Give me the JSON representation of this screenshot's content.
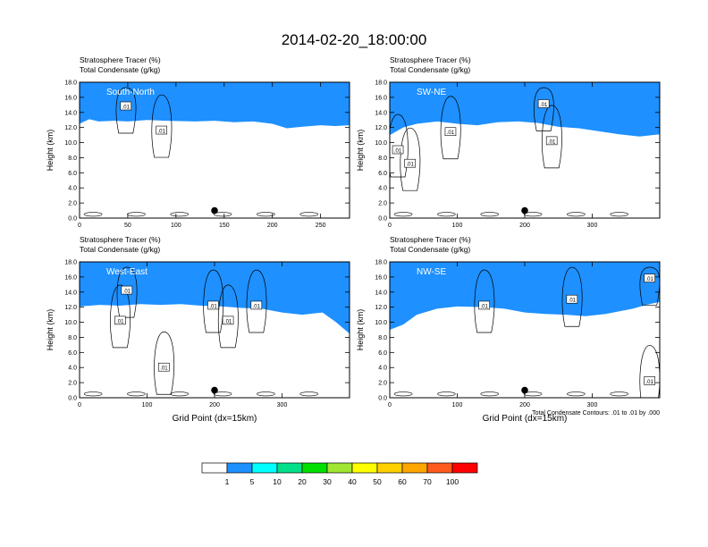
{
  "figure": {
    "title": "2014-02-20_18:00:00",
    "footnote": "Total Condensate Contours: .01 to .01 by .000"
  },
  "colorbar": {
    "levels": [
      "1",
      "5",
      "10",
      "20",
      "30",
      "40",
      "50",
      "60",
      "70",
      "100"
    ],
    "colors": [
      "#ffffff",
      "#1e90ff",
      "#00ffff",
      "#00e08a",
      "#00e000",
      "#a0e632",
      "#ffff00",
      "#ffd000",
      "#ffa500",
      "#ff5a1e",
      "#ff0000"
    ]
  },
  "chart_data": [
    {
      "type": "heatmap",
      "panel": "South-North",
      "title_lines": [
        "Stratosphere Tracer   (%)",
        "Total Condensate   (g/kg)"
      ],
      "ylabel": "Height (km)",
      "xlabel": "",
      "xlim": [
        0,
        280
      ],
      "ylim": [
        0,
        18
      ],
      "xticks": [
        "0",
        "50",
        "100",
        "150",
        "200",
        "250"
      ],
      "yticks": [
        "0.0",
        "2.0",
        "4.0",
        "6.0",
        "8.0",
        "10.0",
        "12.0",
        "14.0",
        "16.0",
        "18.0"
      ],
      "tracer_boundary": [
        {
          "x": 0,
          "h": 16.0
        },
        {
          "x": 10,
          "h": 16.6
        },
        {
          "x": 20,
          "h": 16.3
        },
        {
          "x": 35,
          "h": 16.4
        },
        {
          "x": 50,
          "h": 16.3
        },
        {
          "x": 70,
          "h": 16.5
        },
        {
          "x": 90,
          "h": 16.4
        },
        {
          "x": 120,
          "h": 16.3
        },
        {
          "x": 140,
          "h": 16.4
        },
        {
          "x": 160,
          "h": 16.2
        },
        {
          "x": 180,
          "h": 16.3
        },
        {
          "x": 200,
          "h": 16.0
        },
        {
          "x": 215,
          "h": 15.4
        },
        {
          "x": 230,
          "h": 15.6
        },
        {
          "x": 250,
          "h": 15.8
        },
        {
          "x": 265,
          "h": 15.7
        },
        {
          "x": 280,
          "h": 15.8
        }
      ],
      "contour_labels": [
        {
          "x": 48,
          "y": 14.8,
          "text": ".01"
        },
        {
          "x": 85,
          "y": 11.6,
          "text": ".01"
        }
      ],
      "marker": {
        "x": 140,
        "y": 1.0
      }
    },
    {
      "type": "heatmap",
      "panel": "SW-NE",
      "title_lines": [
        "Stratosphere Tracer   (%)",
        "Total Condensate   (g/kg)"
      ],
      "ylabel": "Height (km)",
      "xlabel": "",
      "xlim": [
        0,
        400
      ],
      "ylim": [
        0,
        18
      ],
      "xticks": [
        "0",
        "100",
        "200",
        "300"
      ],
      "yticks": [
        "0.0",
        "2.0",
        "4.0",
        "6.0",
        "8.0",
        "10.0",
        "12.0",
        "14.0",
        "16.0",
        "18.0"
      ],
      "tracer_boundary": [
        {
          "x": 0,
          "h": 14.5
        },
        {
          "x": 20,
          "h": 15.5
        },
        {
          "x": 40,
          "h": 16.0
        },
        {
          "x": 70,
          "h": 16.3
        },
        {
          "x": 100,
          "h": 16.0
        },
        {
          "x": 130,
          "h": 15.8
        },
        {
          "x": 160,
          "h": 16.2
        },
        {
          "x": 190,
          "h": 16.3
        },
        {
          "x": 220,
          "h": 16.1
        },
        {
          "x": 250,
          "h": 15.6
        },
        {
          "x": 280,
          "h": 15.4
        },
        {
          "x": 310,
          "h": 15.0
        },
        {
          "x": 340,
          "h": 14.6
        },
        {
          "x": 370,
          "h": 14.3
        },
        {
          "x": 400,
          "h": 14.6
        }
      ],
      "contour_labels": [
        {
          "x": 12,
          "y": 9.0,
          "text": ".01"
        },
        {
          "x": 30,
          "y": 7.2,
          "text": ".01"
        },
        {
          "x": 90,
          "y": 11.4,
          "text": ".01"
        },
        {
          "x": 228,
          "y": 15.1,
          "text": ".01"
        },
        {
          "x": 240,
          "y": 10.2,
          "text": ".01"
        }
      ],
      "marker": {
        "x": 200,
        "y": 1.0
      }
    },
    {
      "type": "heatmap",
      "panel": "West-East",
      "title_lines": [
        "Stratosphere Tracer   (%)",
        "Total Condensate   (g/kg)"
      ],
      "ylabel": "Height (km)",
      "xlabel": "Grid Point (dx=15km)",
      "xlim": [
        0,
        400
      ],
      "ylim": [
        0,
        18
      ],
      "xticks": [
        "0",
        "100",
        "200",
        "300"
      ],
      "yticks": [
        "0.0",
        "2.0",
        "4.0",
        "6.0",
        "8.0",
        "10.0",
        "12.0",
        "14.0",
        "16.0",
        "18.0"
      ],
      "tracer_boundary": [
        {
          "x": 0,
          "h": 15.6
        },
        {
          "x": 30,
          "h": 15.8
        },
        {
          "x": 60,
          "h": 15.7
        },
        {
          "x": 90,
          "h": 15.9
        },
        {
          "x": 120,
          "h": 15.8
        },
        {
          "x": 150,
          "h": 15.9
        },
        {
          "x": 180,
          "h": 15.7
        },
        {
          "x": 210,
          "h": 15.6
        },
        {
          "x": 240,
          "h": 15.4
        },
        {
          "x": 270,
          "h": 15.3
        },
        {
          "x": 300,
          "h": 14.8
        },
        {
          "x": 330,
          "h": 14.5
        },
        {
          "x": 360,
          "h": 14.8
        },
        {
          "x": 380,
          "h": 13.5
        },
        {
          "x": 400,
          "h": 12.0
        }
      ],
      "contour_labels": [
        {
          "x": 70,
          "y": 14.2,
          "text": ".01"
        },
        {
          "x": 60,
          "y": 10.2,
          "text": ".01"
        },
        {
          "x": 198,
          "y": 12.2,
          "text": ".01"
        },
        {
          "x": 220,
          "y": 10.2,
          "text": ".01"
        },
        {
          "x": 262,
          "y": 12.2,
          "text": ".01"
        },
        {
          "x": 125,
          "y": 4.0,
          "text": ".01"
        }
      ],
      "marker": {
        "x": 200,
        "y": 1.0
      }
    },
    {
      "type": "heatmap",
      "panel": "NW-SE",
      "title_lines": [
        "Stratosphere Tracer   (%)",
        "Total Condensate   (g/kg)"
      ],
      "ylabel": "Height (km)",
      "xlabel": "Grid Point (dx=15km)",
      "xlim": [
        0,
        400
      ],
      "ylim": [
        0,
        18
      ],
      "xticks": [
        "0",
        "100",
        "200",
        "300"
      ],
      "yticks": [
        "0.0",
        "2.0",
        "4.0",
        "6.0",
        "8.0",
        "10.0",
        "12.0",
        "14.0",
        "16.0",
        "18.0"
      ],
      "tracer_boundary": [
        {
          "x": 0,
          "h": 12.5
        },
        {
          "x": 20,
          "h": 13.2
        },
        {
          "x": 40,
          "h": 14.5
        },
        {
          "x": 70,
          "h": 15.3
        },
        {
          "x": 100,
          "h": 15.6
        },
        {
          "x": 140,
          "h": 15.5
        },
        {
          "x": 170,
          "h": 15.3
        },
        {
          "x": 200,
          "h": 14.8
        },
        {
          "x": 230,
          "h": 14.6
        },
        {
          "x": 260,
          "h": 14.5
        },
        {
          "x": 290,
          "h": 14.3
        },
        {
          "x": 320,
          "h": 14.6
        },
        {
          "x": 360,
          "h": 15.3
        },
        {
          "x": 380,
          "h": 15.8
        },
        {
          "x": 400,
          "h": 16.2
        }
      ],
      "contour_labels": [
        {
          "x": 140,
          "y": 12.2,
          "text": ".01"
        },
        {
          "x": 270,
          "y": 13.0,
          "text": ".01"
        },
        {
          "x": 385,
          "y": 15.8,
          "text": ".01"
        },
        {
          "x": 385,
          "y": 2.2,
          "text": ".01"
        }
      ],
      "marker": {
        "x": 200,
        "y": 1.0
      }
    }
  ]
}
